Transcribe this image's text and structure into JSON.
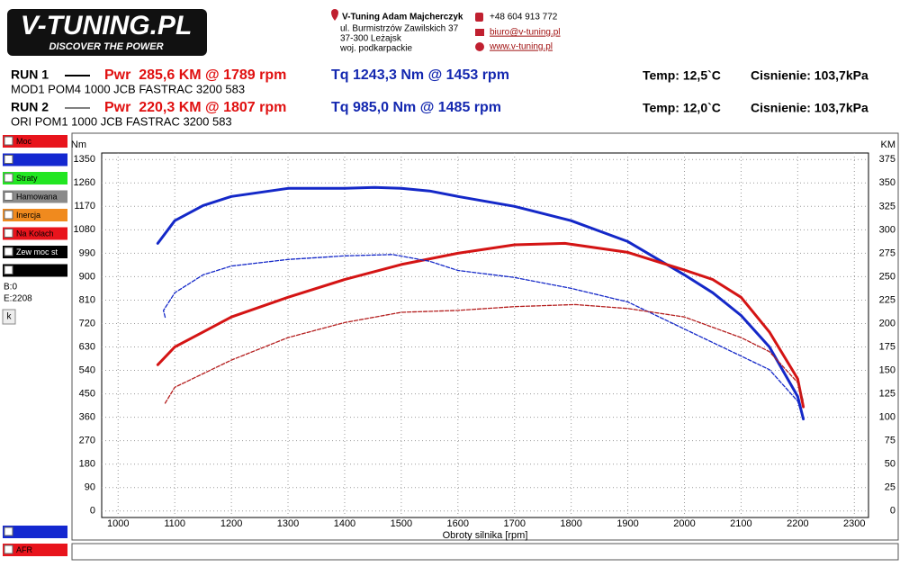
{
  "header": {
    "logo": "V-TUNING.PL",
    "slogan": "DISCOVER THE POWER",
    "company": "V-Tuning Adam Majcherczyk",
    "address": [
      "ul. Burmistrzów Zawilskich 37",
      "37-300 Leżajsk",
      "woj. podkarpackie"
    ],
    "phone": "+48 604 913 772",
    "email": "biuro@v-tuning.pl",
    "website": "www.v-tuning.pl"
  },
  "runs": [
    {
      "name": "RUN 1",
      "power": "Pwr  285,6 KM @ 1789 rpm",
      "torque": "Tq 1243,3 Nm @ 1453 rpm",
      "temp": "Temp: 12,5`C",
      "pressure": "Cisnienie: 103,7kPa",
      "description": "MOD1 POM4 1000 JCB FASTRAC 3200 583"
    },
    {
      "name": "RUN 2",
      "power": "Pwr  220,3 KM @ 1807 rpm",
      "torque": "Tq 985,0 Nm @ 1485 rpm",
      "temp": "Temp: 12,0`C",
      "pressure": "Cisnienie: 103,7kPa",
      "description": "ORI POM1 1000 JCB FASTRAC 3200 583"
    }
  ],
  "sidebar": {
    "checkboxes": [
      {
        "label": "Moc",
        "color": "#e8141c"
      },
      {
        "color": "#1428d0"
      },
      {
        "label": "Straty",
        "color": "#22e622"
      },
      {
        "label": "Hamowana",
        "color": "#8a8a8a"
      },
      {
        "label": "Inercja",
        "color": "#f08a1e"
      },
      {
        "label": "Na Kolach",
        "color": "#e8141c"
      },
      {
        "label": "Zew moc st",
        "color": "#000000"
      },
      {
        "color": "#000000"
      }
    ],
    "b": "B:0",
    "e": "E:2208",
    "button": "k",
    "bottom_checkboxes": [
      {
        "color": "#1428d0"
      },
      {
        "label": "AFR",
        "color": "#e8141c"
      }
    ]
  },
  "chart_data": {
    "type": "line",
    "y_label": "Nm",
    "y2_label": "KM",
    "x_label": "Obroty silnika [rpm]",
    "xlim": [
      971,
      2325
    ],
    "ylim": [
      -25,
      1375
    ],
    "y2lim": [
      -7,
      382
    ],
    "grid": true,
    "xticks": [
      1000,
      1100,
      1200,
      1300,
      1400,
      1500,
      1600,
      1700,
      1800,
      1900,
      2000,
      2100,
      2200,
      2300
    ],
    "yticks": [
      0,
      90,
      180,
      270,
      360,
      450,
      540,
      630,
      720,
      810,
      900,
      990,
      1080,
      1170,
      1260,
      1350
    ],
    "y2ticks": [
      0,
      25,
      50,
      75,
      100,
      125,
      150,
      175,
      200,
      225,
      250,
      275,
      300,
      325,
      350,
      375
    ],
    "series": [
      {
        "color": "#1428c8",
        "dash": false,
        "axis": "y",
        "x": [
          1070,
          1100,
          1150,
          1200,
          1300,
          1400,
          1453,
          1500,
          1550,
          1600,
          1700,
          1800,
          1900,
          2000,
          2050,
          2100,
          2150,
          2200,
          2210
        ],
        "values": [
          1028,
          1115,
          1173,
          1208,
          1239,
          1239,
          1243,
          1239,
          1229,
          1208,
          1170,
          1115,
          1035,
          907,
          838,
          751,
          630,
          440,
          353
        ]
      },
      {
        "color": "#d41414",
        "dash": false,
        "axis": "y2",
        "x": [
          1070,
          1100,
          1150,
          1200,
          1300,
          1400,
          1500,
          1600,
          1700,
          1789,
          1900,
          2000,
          2050,
          2100,
          2150,
          2200,
          2210
        ],
        "values": [
          156,
          175,
          191,
          207,
          228,
          247,
          263,
          275,
          284,
          285.6,
          276,
          257,
          247,
          228,
          191,
          141,
          111
        ]
      },
      {
        "color": "#1428c8",
        "dash": true,
        "axis": "y",
        "x": [
          1083,
          1080,
          1100,
          1150,
          1200,
          1300,
          1400,
          1485,
          1550,
          1600,
          1700,
          1800,
          1900,
          2000,
          2100,
          2150,
          2200,
          2210
        ],
        "values": [
          744,
          770,
          838,
          907,
          941,
          966,
          980,
          985,
          959,
          924,
          897,
          855,
          803,
          699,
          595,
          543,
          422,
          353
        ]
      },
      {
        "color": "#b41e1e",
        "dash": true,
        "axis": "y2",
        "x": [
          1083,
          1100,
          1200,
          1300,
          1400,
          1500,
          1600,
          1700,
          1807,
          1900,
          2000,
          2100,
          2150,
          2200,
          2210
        ],
        "values": [
          115,
          132,
          161,
          185,
          201,
          212,
          214,
          218,
          220.3,
          216,
          207,
          185,
          170,
          137,
          117
        ]
      }
    ]
  }
}
